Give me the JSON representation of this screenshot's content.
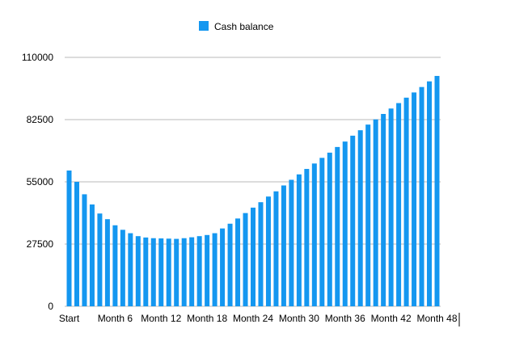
{
  "chart_data": {
    "type": "bar",
    "title": "",
    "xlabel": "",
    "ylabel": "",
    "ylim": [
      0,
      110000
    ],
    "yticks": [
      0,
      27500,
      55000,
      82500,
      110000
    ],
    "ytick_labels": [
      "0",
      "27500",
      "55000",
      "82500",
      "110000"
    ],
    "grid": true,
    "legend": {
      "position": "top-center",
      "entries": [
        "Cash balance"
      ]
    },
    "categories": [
      "Start",
      "Month 1",
      "Month 2",
      "Month 3",
      "Month 4",
      "Month 5",
      "Month 6",
      "Month 7",
      "Month 8",
      "Month 9",
      "Month 10",
      "Month 11",
      "Month 12",
      "Month 13",
      "Month 14",
      "Month 15",
      "Month 16",
      "Month 17",
      "Month 18",
      "Month 19",
      "Month 20",
      "Month 21",
      "Month 22",
      "Month 23",
      "Month 24",
      "Month 25",
      "Month 26",
      "Month 27",
      "Month 28",
      "Month 29",
      "Month 30",
      "Month 31",
      "Month 32",
      "Month 33",
      "Month 34",
      "Month 35",
      "Month 36",
      "Month 37",
      "Month 38",
      "Month 39",
      "Month 40",
      "Month 41",
      "Month 42",
      "Month 43",
      "Month 44",
      "Month 45",
      "Month 46",
      "Month 47",
      "Month 48"
    ],
    "xtick_labels": [
      "Start",
      "Month 6",
      "Month 12",
      "Month 18",
      "Month 24",
      "Month 30",
      "Month 36",
      "Month 42",
      "Month 48"
    ],
    "series": [
      {
        "name": "Cash balance",
        "color": "#1497f0",
        "values": [
          60000,
          55000,
          49500,
          45000,
          41000,
          38500,
          35800,
          33800,
          32300,
          31000,
          30400,
          30100,
          30000,
          29900,
          29800,
          30100,
          30500,
          31000,
          31500,
          32300,
          34400,
          36500,
          38800,
          41200,
          43600,
          46000,
          48500,
          50800,
          53400,
          55900,
          58300,
          60700,
          63100,
          65600,
          67900,
          70400,
          72800,
          75400,
          77800,
          80300,
          82600,
          85000,
          87400,
          89800,
          92200,
          94500,
          96900,
          99400,
          101800
        ]
      }
    ]
  }
}
